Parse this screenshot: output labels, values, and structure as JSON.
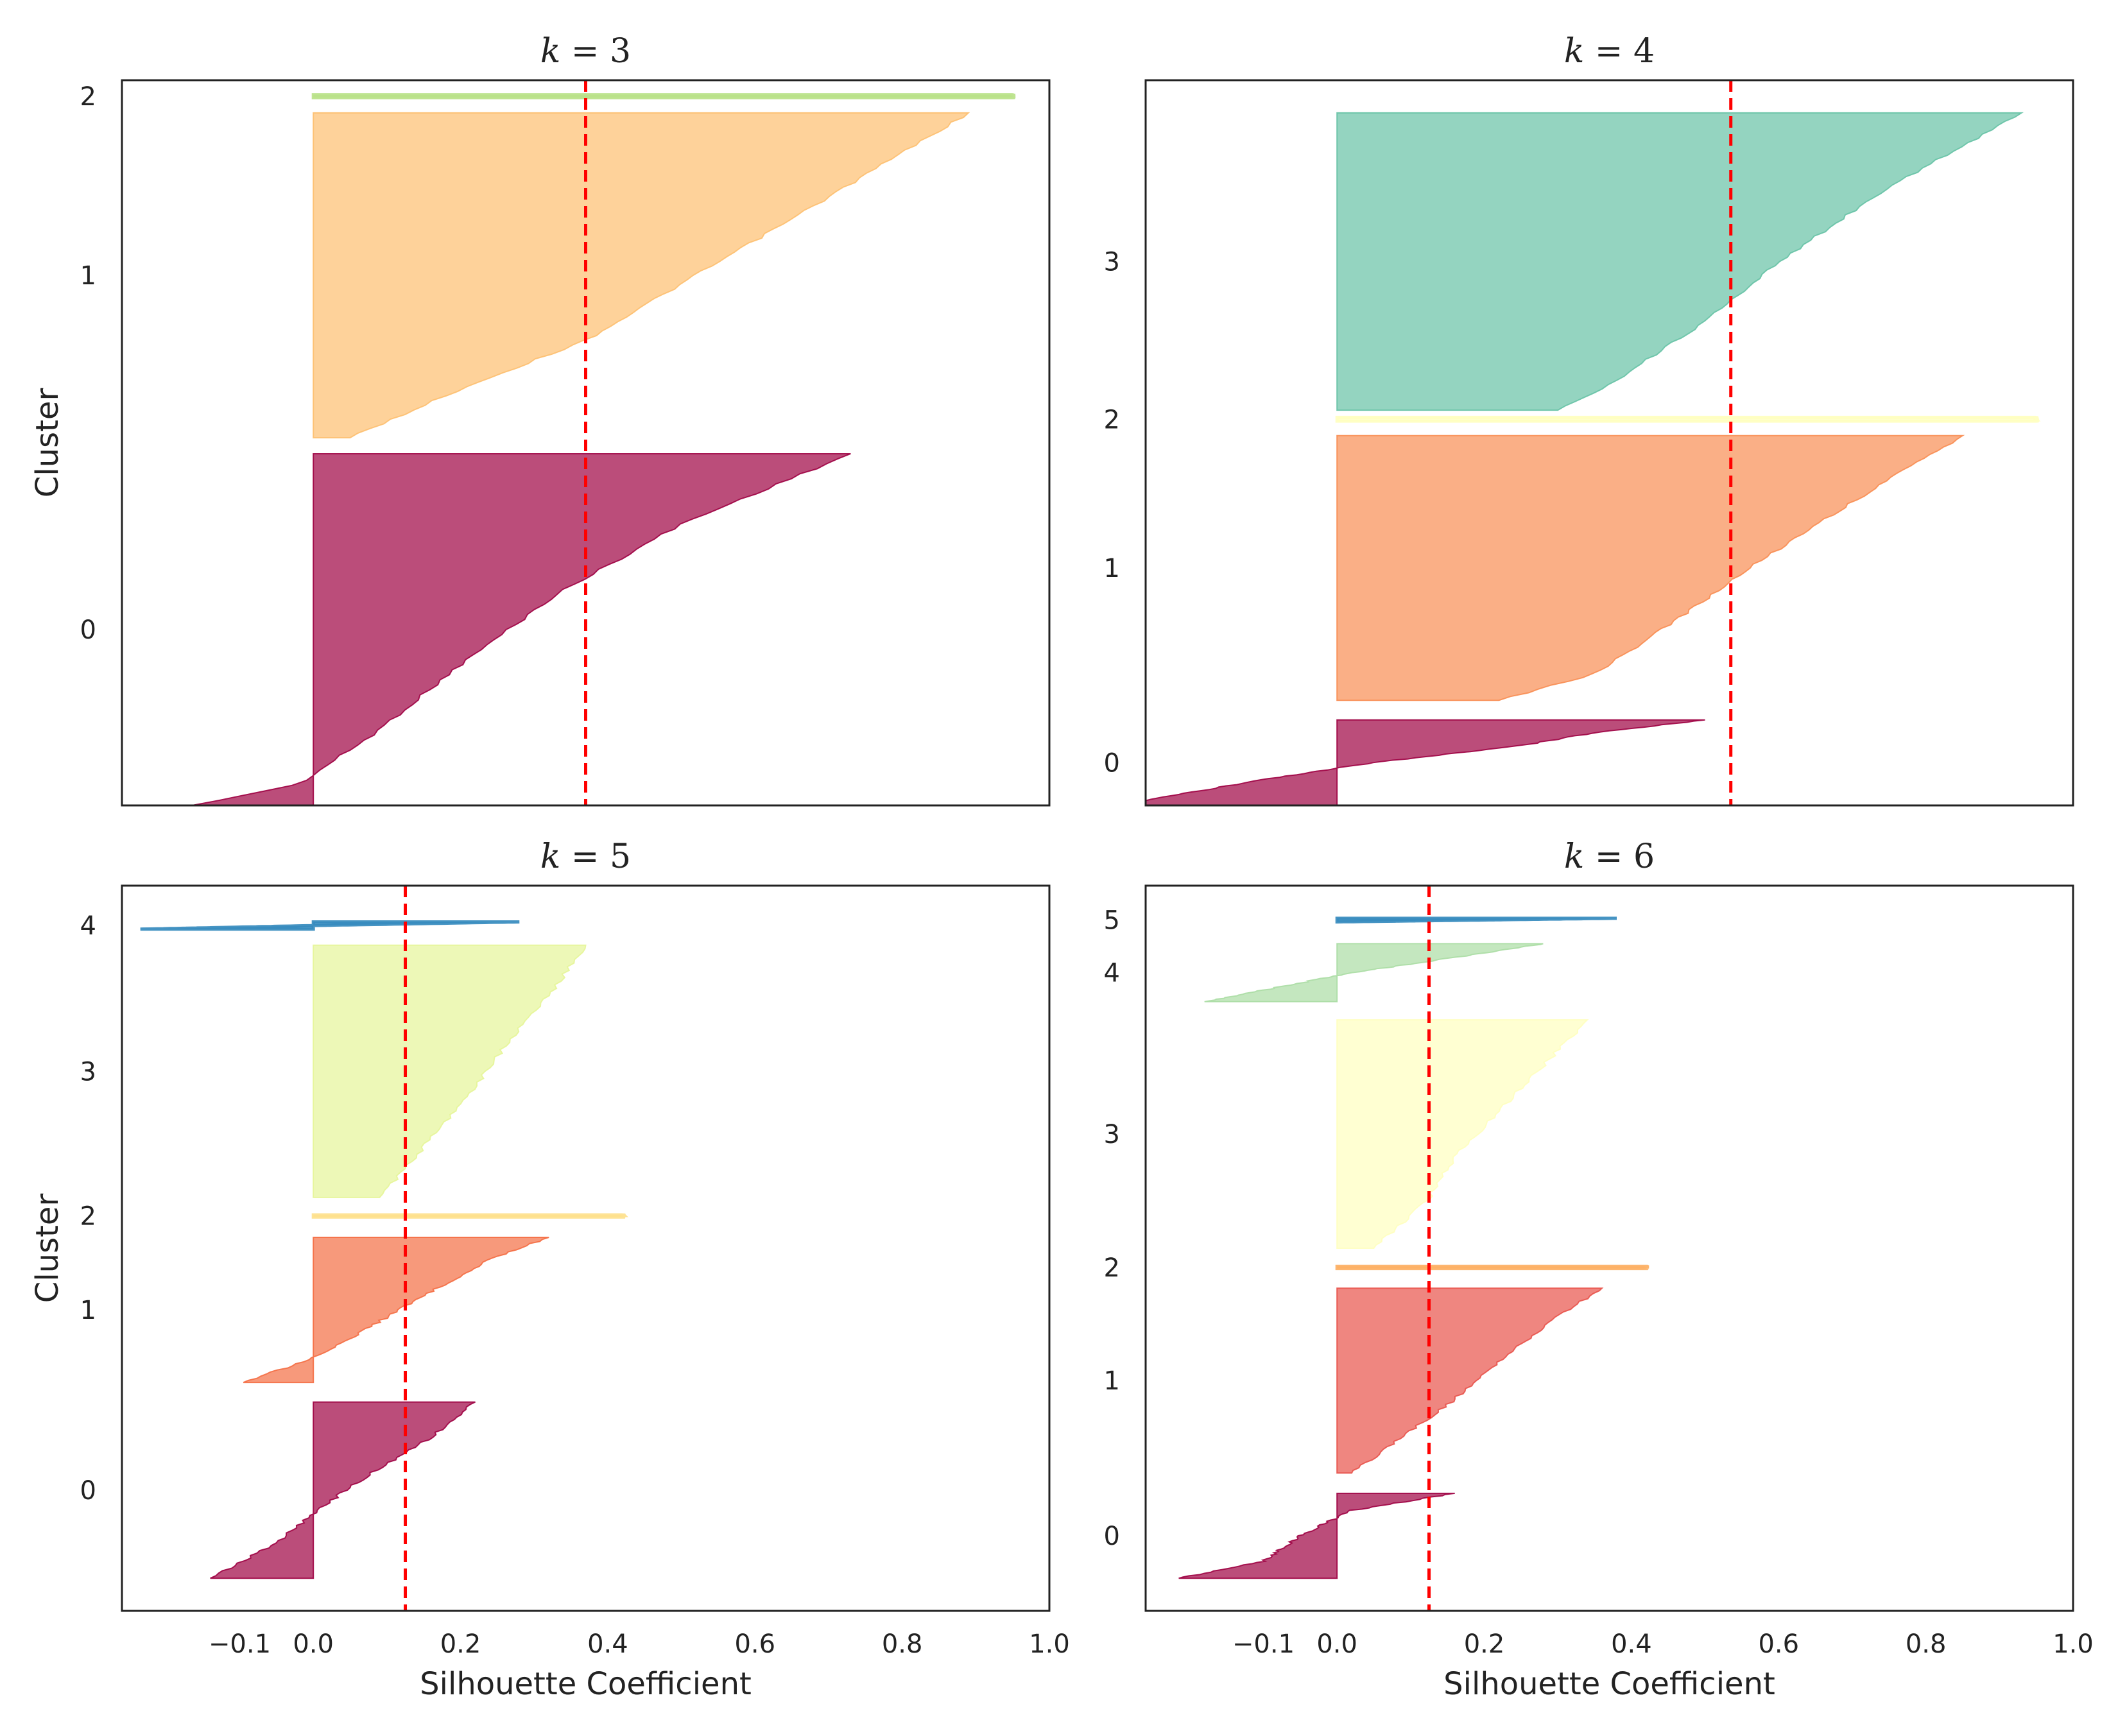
{
  "chart_data": [
    {
      "type": "silhouette",
      "title_var": "k",
      "title_op": " = ",
      "k": "3",
      "xlim": [
        -0.26,
        1.0
      ],
      "xticks_shown": false,
      "ylabel": "Cluster",
      "average_silhouette": 0.37,
      "clusters": [
        {
          "label": "0",
          "color": "#9e0142",
          "y_start": 0.0,
          "y_end": 0.485,
          "profile": [
            [
              0,
              -0.165
            ],
            [
              0.06,
              -0.02
            ],
            [
              0.2,
              0.08
            ],
            [
              0.4,
              0.2
            ],
            [
              0.6,
              0.33
            ],
            [
              0.8,
              0.5
            ],
            [
              1,
              0.73
            ]
          ]
        },
        {
          "label": "1",
          "color": "#fdbf6f",
          "y_start": 0.507,
          "y_end": 0.955,
          "profile": [
            [
              0,
              0.05
            ],
            [
              0.15,
              0.2
            ],
            [
              0.3,
              0.37
            ],
            [
              0.5,
              0.52
            ],
            [
              0.7,
              0.67
            ],
            [
              0.85,
              0.78
            ],
            [
              1,
              0.89
            ]
          ]
        },
        {
          "label": "2",
          "color": "#b8e186",
          "y_start": 0.976,
          "y_end": 0.98,
          "profile": [
            [
              0,
              0.95
            ],
            [
              1,
              0.95
            ]
          ]
        }
      ]
    },
    {
      "type": "silhouette",
      "title_var": "k",
      "title_op": " = ",
      "k": "4",
      "xlim": [
        -0.26,
        1.0
      ],
      "xticks_shown": false,
      "ylabel": "",
      "average_silhouette": 0.535,
      "clusters": [
        {
          "label": "0",
          "color": "#9e0142",
          "y_start": 0.0,
          "y_end": 0.118,
          "profile": [
            [
              0,
              -0.3
            ],
            [
              0.3,
              -0.1
            ],
            [
              0.5,
              0.05
            ],
            [
              0.7,
              0.25
            ],
            [
              0.85,
              0.35
            ],
            [
              1,
              0.5
            ]
          ]
        },
        {
          "label": "1",
          "color": "#f88d52",
          "y_start": 0.145,
          "y_end": 0.51,
          "profile": [
            [
              0,
              0.22
            ],
            [
              0.1,
              0.35
            ],
            [
              0.3,
              0.46
            ],
            [
              0.5,
              0.56
            ],
            [
              0.75,
              0.7
            ],
            [
              1,
              0.85
            ]
          ]
        },
        {
          "label": "2",
          "color": "#ffffbf",
          "y_start": 0.53,
          "y_end": 0.535,
          "profile": [
            [
              0,
              0.95
            ],
            [
              1,
              0.95
            ]
          ]
        },
        {
          "label": "3",
          "color": "#66c2a5",
          "y_start": 0.545,
          "y_end": 0.955,
          "profile": [
            [
              0,
              0.3
            ],
            [
              0.1,
              0.38
            ],
            [
              0.3,
              0.5
            ],
            [
              0.5,
              0.6
            ],
            [
              0.75,
              0.75
            ],
            [
              1,
              0.93
            ]
          ]
        }
      ]
    },
    {
      "type": "silhouette",
      "title_var": "k",
      "title_op": " = ",
      "k": "5",
      "xlim": [
        -0.26,
        1.0
      ],
      "xticks": [
        "−0.1",
        "0.0",
        "0.2",
        "0.4",
        "0.6",
        "0.8",
        "1.0"
      ],
      "xtick_values": [
        -0.1,
        0.0,
        0.2,
        0.4,
        0.6,
        0.8,
        1.0
      ],
      "xlabel": "Silhouette Coefficient",
      "ylabel": "Cluster",
      "average_silhouette": 0.125,
      "clusters": [
        {
          "label": "0",
          "color": "#9e0142",
          "y_start": 0.045,
          "y_end": 0.288,
          "profile": [
            [
              0,
              -0.14
            ],
            [
              0.2,
              -0.05
            ],
            [
              0.4,
              0.01
            ],
            [
              0.6,
              0.08
            ],
            [
              0.8,
              0.16
            ],
            [
              1,
              0.22
            ]
          ]
        },
        {
          "label": "1",
          "color": "#f46d43",
          "y_start": 0.315,
          "y_end": 0.515,
          "profile": [
            [
              0,
              -0.095
            ],
            [
              0.15,
              -0.01
            ],
            [
              0.3,
              0.05
            ],
            [
              0.6,
              0.15
            ],
            [
              0.85,
              0.24
            ],
            [
              1,
              0.32
            ]
          ]
        },
        {
          "label": "2",
          "color": "#fee08b",
          "y_start": 0.543,
          "y_end": 0.546,
          "profile": [
            [
              0,
              0.42
            ],
            [
              1,
              0.42
            ]
          ]
        },
        {
          "label": "3",
          "color": "#e6f598",
          "y_start": 0.57,
          "y_end": 0.918,
          "profile": [
            [
              0,
              0.09
            ],
            [
              0.2,
              0.15
            ],
            [
              0.4,
              0.21
            ],
            [
              0.6,
              0.26
            ],
            [
              0.8,
              0.32
            ],
            [
              1,
              0.37
            ]
          ]
        },
        {
          "label": "4",
          "color": "#3288bd",
          "y_start": 0.94,
          "y_end": 0.95,
          "profile": [
            [
              0,
              -0.235
            ],
            [
              0.5,
              0.0
            ],
            [
              1,
              0.28
            ]
          ]
        }
      ]
    },
    {
      "type": "silhouette",
      "title_var": "k",
      "title_op": " = ",
      "k": "6",
      "xlim": [
        -0.26,
        1.0
      ],
      "xticks": [
        "−0.1",
        "0.0",
        "0.2",
        "0.4",
        "0.6",
        "0.8",
        "1.0"
      ],
      "xtick_values": [
        -0.1,
        0.0,
        0.2,
        0.4,
        0.6,
        0.8,
        1.0
      ],
      "xlabel": "Silhouette Coefficient",
      "ylabel": "",
      "average_silhouette": 0.125,
      "clusters": [
        {
          "label": "0",
          "color": "#9e0142",
          "y_start": 0.045,
          "y_end": 0.162,
          "profile": [
            [
              0,
              -0.215
            ],
            [
              0.2,
              -0.1
            ],
            [
              0.5,
              -0.05
            ],
            [
              0.8,
              0.02
            ],
            [
              1,
              0.16
            ]
          ]
        },
        {
          "label": "1",
          "color": "#e8524a",
          "y_start": 0.19,
          "y_end": 0.445,
          "profile": [
            [
              0,
              0.02
            ],
            [
              0.2,
              0.09
            ],
            [
              0.4,
              0.16
            ],
            [
              0.6,
              0.22
            ],
            [
              0.85,
              0.3
            ],
            [
              1,
              0.36
            ]
          ]
        },
        {
          "label": "2",
          "color": "#fdae61",
          "y_start": 0.472,
          "y_end": 0.475,
          "profile": [
            [
              0,
              0.42
            ],
            [
              1,
              0.42
            ]
          ]
        },
        {
          "label": "3",
          "color": "#ffffbf",
          "y_start": 0.5,
          "y_end": 0.815,
          "profile": [
            [
              0,
              0.05
            ],
            [
              0.2,
              0.12
            ],
            [
              0.4,
              0.16
            ],
            [
              0.6,
              0.22
            ],
            [
              0.8,
              0.28
            ],
            [
              1,
              0.34
            ]
          ]
        },
        {
          "label": "4",
          "color": "#abdda4",
          "y_start": 0.84,
          "y_end": 0.92,
          "profile": [
            [
              0,
              -0.18
            ],
            [
              0.2,
              -0.1
            ],
            [
              0.5,
              0.02
            ],
            [
              0.8,
              0.18
            ],
            [
              1,
              0.28
            ]
          ]
        },
        {
          "label": "5",
          "color": "#3288bd",
          "y_start": 0.95,
          "y_end": 0.955,
          "profile": [
            [
              0,
              0.0
            ],
            [
              1,
              0.38
            ]
          ]
        }
      ]
    }
  ],
  "styling": {
    "avg_line_color": "#ff0000",
    "fill_opacity": 0.7,
    "axis_color": "#222222"
  }
}
